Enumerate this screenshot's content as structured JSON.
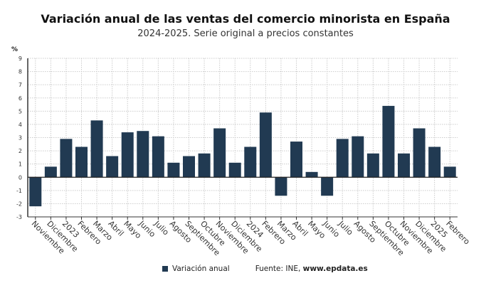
{
  "chart_data": {
    "type": "bar",
    "title": "Variación anual de las ventas del comercio minorista en España",
    "subtitle": "2024-2025. Serie original a precios constantes",
    "ylabel": "%",
    "ylim": [
      -3,
      9
    ],
    "yticks": [
      -3,
      -2,
      -1,
      0,
      1,
      2,
      3,
      4,
      5,
      6,
      7,
      8,
      9
    ],
    "grid": true,
    "color": "#213a52",
    "categories": [
      "Noviembre",
      "Diciembre",
      "2023",
      "Febrero",
      "Marzo",
      "Abril",
      "Mayo",
      "Junio",
      "Julio",
      "Agosto",
      "Septiembre",
      "Octubre",
      "Noviembre",
      "Diciembre",
      "2024",
      "Febrero",
      "Marzo",
      "Abril",
      "Mayo",
      "Junio",
      "Julio",
      "Agosto",
      "Septiembre",
      "Octubre",
      "Noviembre",
      "Diciembre",
      "2025",
      "Febrero"
    ],
    "series": [
      {
        "name": "Variación anual",
        "values": [
          -2.2,
          0.8,
          2.9,
          2.3,
          4.3,
          1.6,
          3.4,
          3.5,
          3.1,
          1.1,
          1.6,
          1.8,
          3.7,
          1.1,
          2.3,
          4.9,
          -1.4,
          2.7,
          0.4,
          -1.4,
          2.9,
          3.1,
          1.8,
          5.4,
          1.8,
          3.7,
          2.3,
          0.8
        ]
      }
    ],
    "legend_placement": "bottom"
  },
  "source": {
    "label": "Fuente: INE,",
    "site": "www.epdata.es"
  }
}
